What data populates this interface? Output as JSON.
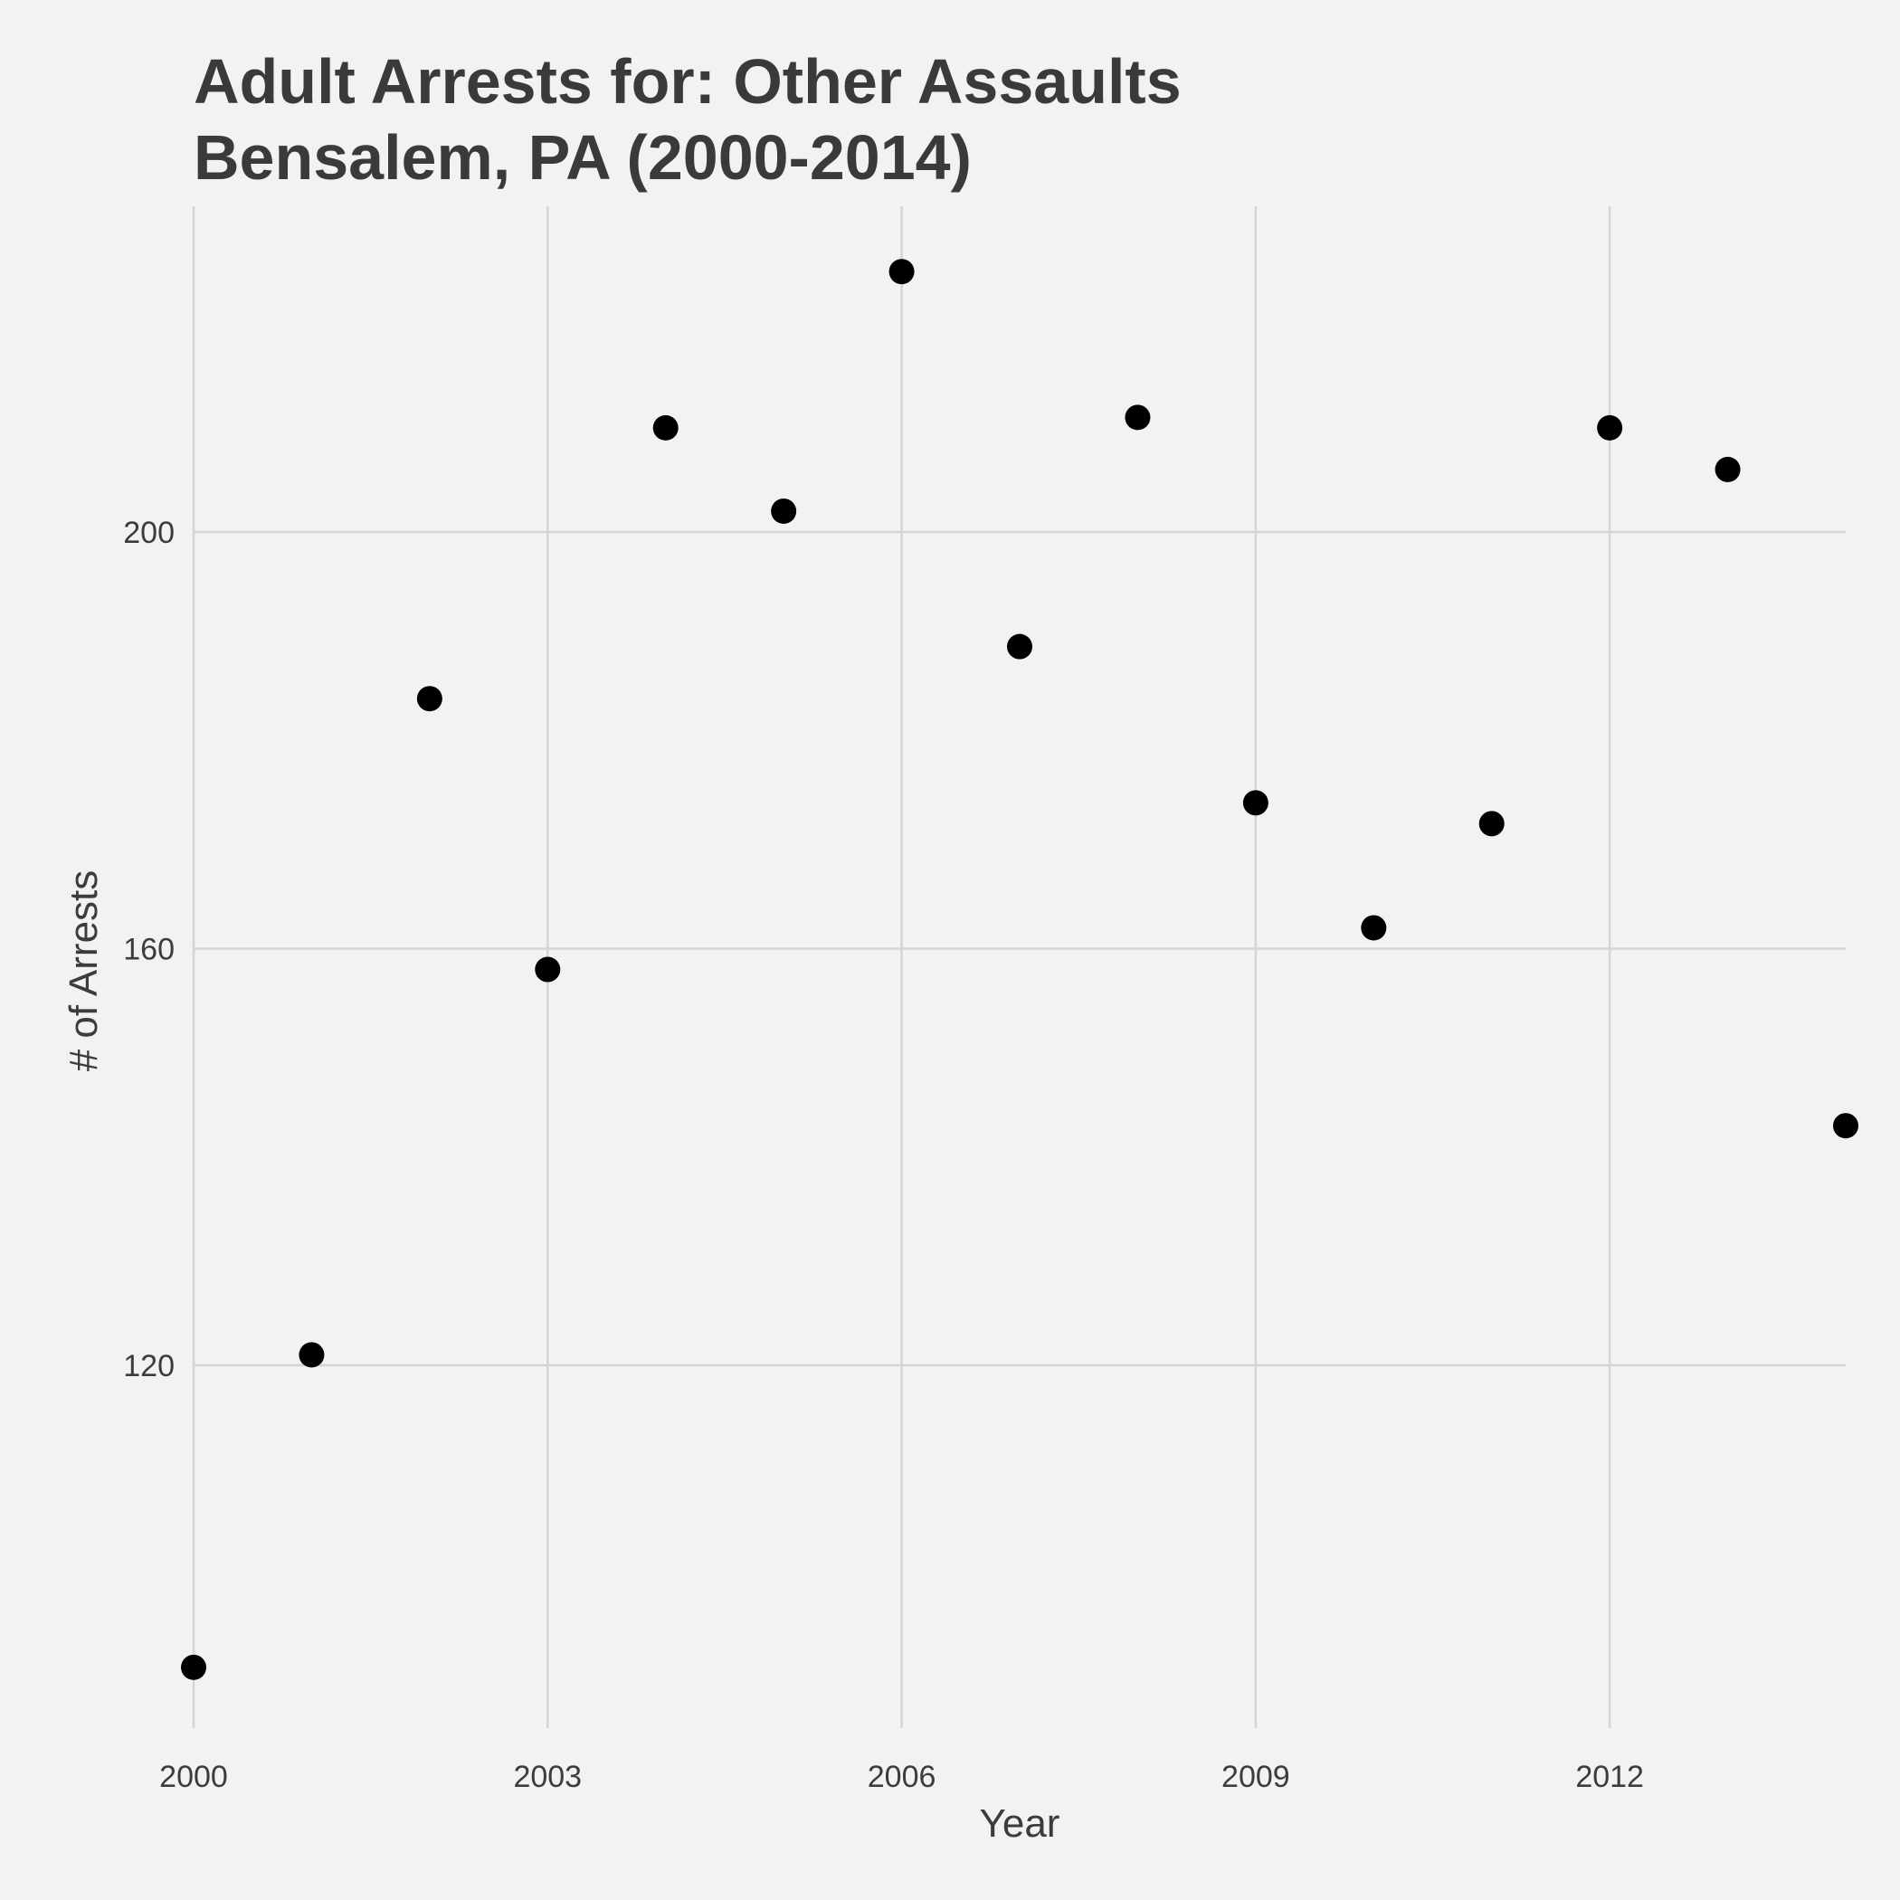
{
  "chart_data": {
    "type": "scatter",
    "title": "Adult Arrests for: Other Assaults",
    "subtitle": "Bensalem, PA (2000-2014)",
    "xlabel": "Year",
    "ylabel": "# of Arrests",
    "xlim": [
      2000,
      2014
    ],
    "ylim": [
      91,
      223
    ],
    "x_ticks": [
      2000,
      2003,
      2006,
      2009,
      2012
    ],
    "y_ticks": [
      120,
      160,
      200
    ],
    "grid": true,
    "legend": "none",
    "point_color": "#000000",
    "background_color": "#f2f2f2",
    "points": [
      {
        "x": 2000,
        "y": 91
      },
      {
        "x": 2001,
        "y": 121
      },
      {
        "x": 2002,
        "y": 184
      },
      {
        "x": 2003,
        "y": 158
      },
      {
        "x": 2004,
        "y": 210
      },
      {
        "x": 2005,
        "y": 202
      },
      {
        "x": 2006,
        "y": 225
      },
      {
        "x": 2007,
        "y": 189
      },
      {
        "x": 2008,
        "y": 211
      },
      {
        "x": 2009,
        "y": 174
      },
      {
        "x": 2010,
        "y": 162
      },
      {
        "x": 2011,
        "y": 172
      },
      {
        "x": 2012,
        "y": 210
      },
      {
        "x": 2013,
        "y": 206
      },
      {
        "x": 2014,
        "y": 143
      }
    ]
  }
}
